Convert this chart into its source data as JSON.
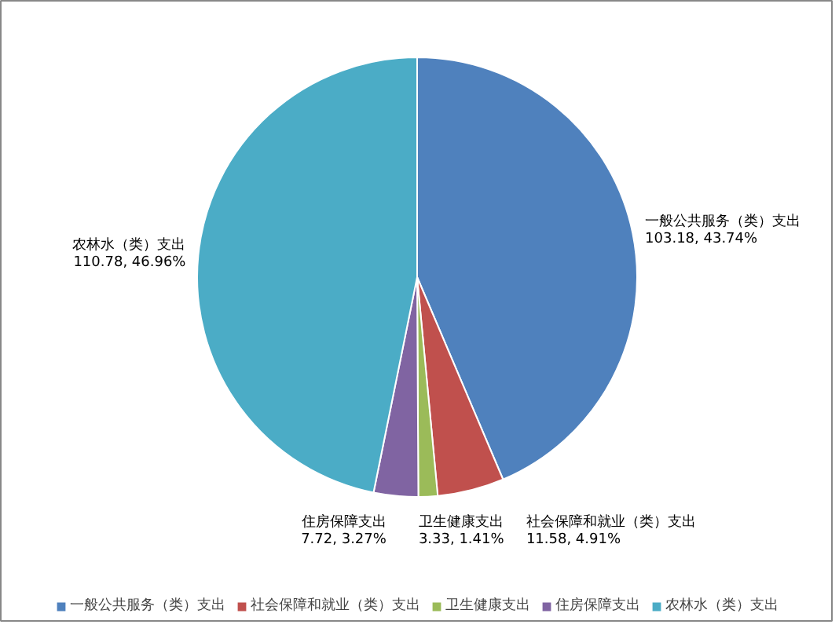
{
  "chart_data": {
    "type": "pie",
    "categories": [
      "一般公共服务（类）支出",
      "社会保障和就业（类）支出",
      "卫生健康支出",
      "住房保障支出",
      "农林水（类）支出"
    ],
    "values": [
      103.18,
      11.58,
      3.33,
      7.72,
      110.78
    ],
    "value_labels": [
      "103.18, 43.74%",
      "11.58, 4.91%",
      "3.33, 1.41%",
      "7.72, 3.27%",
      "110.78, 46.96%"
    ],
    "colors": [
      "#4f81bd",
      "#c0504d",
      "#9bbb59",
      "#8064a2",
      "#4bacc6"
    ],
    "legend": "bottom"
  }
}
